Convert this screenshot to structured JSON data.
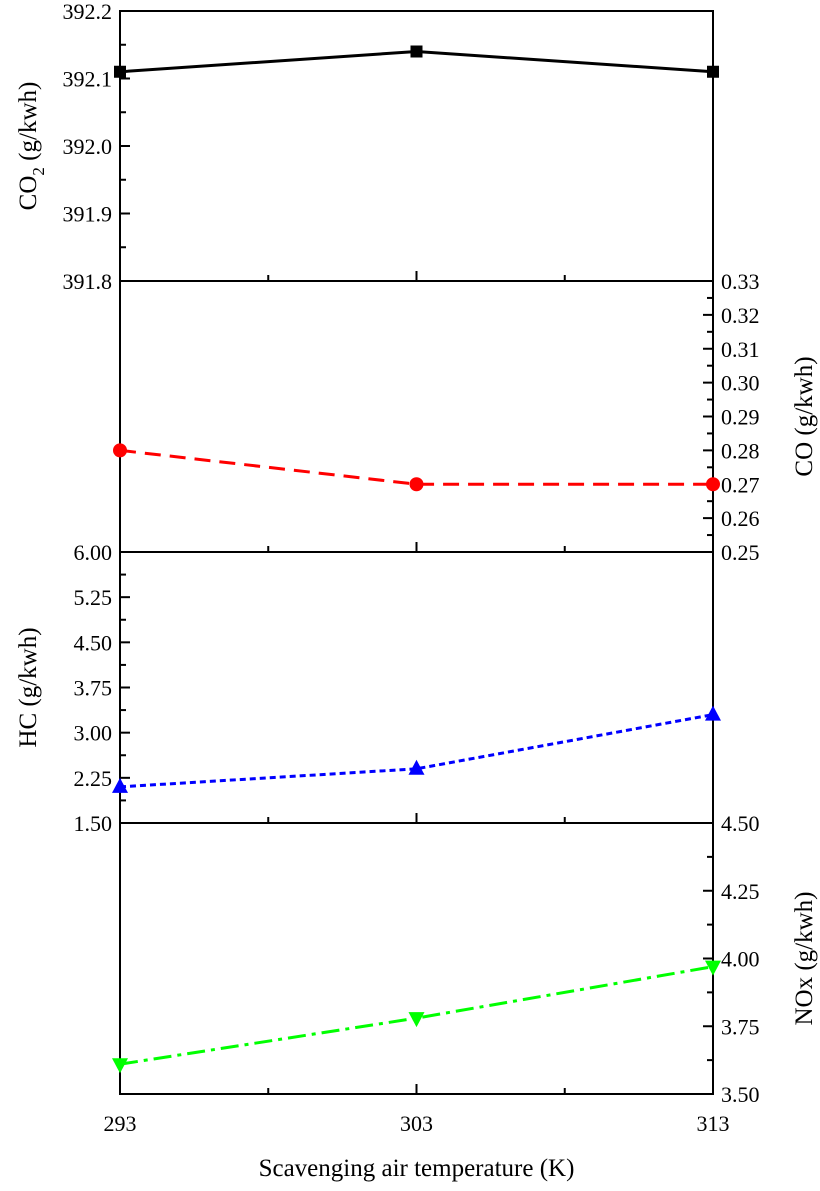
{
  "chart_data": {
    "type": "line",
    "x": [
      293,
      303,
      313
    ],
    "xlabel": "Scavenging air temperature (K)",
    "x_ticks": [
      "293",
      "303",
      "313"
    ],
    "xlim": [
      293,
      313
    ],
    "panels": [
      {
        "id": "co2",
        "ylabel_main": "CO",
        "ylabel_sub": "2",
        "ylabel_rest": " (g/kwh)",
        "axis_side": "left",
        "ylim": [
          391.8,
          392.2
        ],
        "y_ticks": [
          "391.8",
          "391.9",
          "392.0",
          "392.1",
          "392.2"
        ],
        "color": "#000000",
        "marker": "square",
        "dash": "solid",
        "values": [
          392.11,
          392.14,
          392.11
        ]
      },
      {
        "id": "co",
        "ylabel": "CO (g/kwh)",
        "axis_side": "right",
        "ylim": [
          0.25,
          0.33
        ],
        "y_ticks": [
          "0.25",
          "0.26",
          "0.27",
          "0.28",
          "0.29",
          "0.30",
          "0.31",
          "0.32",
          "0.33"
        ],
        "color": "#ff0000",
        "marker": "circle",
        "dash": "dashed",
        "values": [
          0.28,
          0.27,
          0.27
        ]
      },
      {
        "id": "hc",
        "ylabel": "HC (g/kwh)",
        "axis_side": "left",
        "ylim": [
          1.5,
          6.0
        ],
        "y_ticks": [
          "1.50",
          "2.25",
          "3.00",
          "3.75",
          "4.50",
          "5.25",
          "6.00"
        ],
        "color": "#0000ff",
        "marker": "triangle-up",
        "dash": "dotted",
        "values": [
          2.1,
          2.4,
          3.3
        ]
      },
      {
        "id": "nox",
        "ylabel": "NOx (g/kwh)",
        "axis_side": "right",
        "ylim": [
          3.5,
          4.5
        ],
        "y_ticks": [
          "3.50",
          "3.75",
          "4.00",
          "4.25",
          "4.50"
        ],
        "color": "#00ff00",
        "marker": "triangle-down",
        "dash": "dash-dot",
        "values": [
          3.61,
          3.78,
          3.97
        ]
      }
    ]
  }
}
